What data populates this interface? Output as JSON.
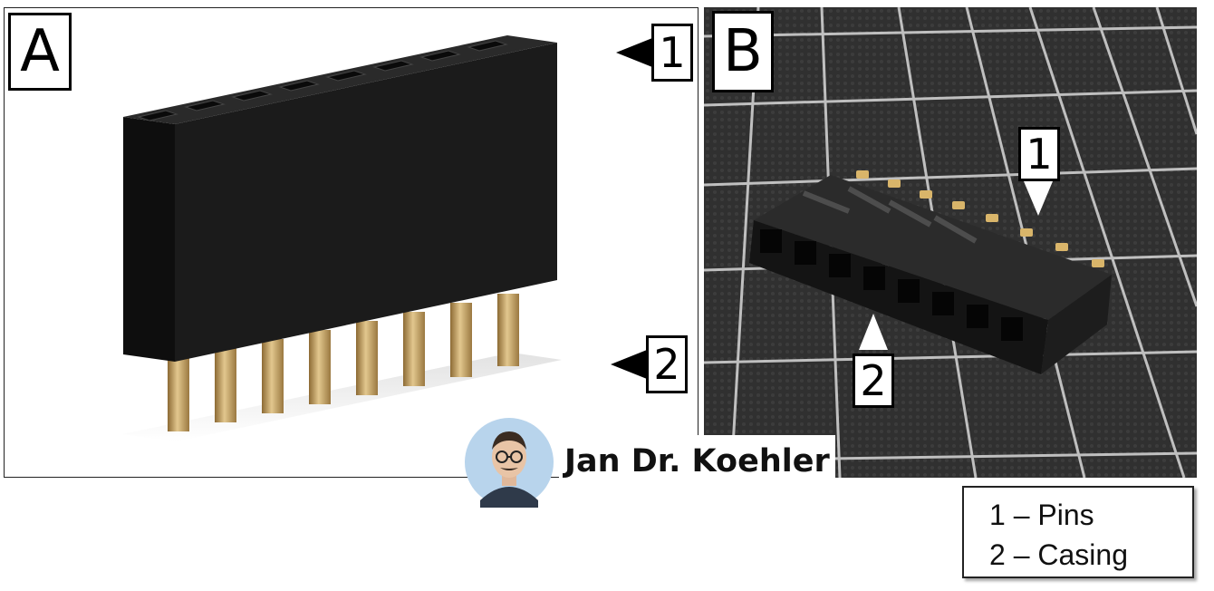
{
  "panels": {
    "a": {
      "label": "A",
      "callouts": [
        "1",
        "2"
      ]
    },
    "b": {
      "label": "B",
      "callouts": [
        "1",
        "2"
      ]
    }
  },
  "author": {
    "name": "Jan Dr. Koehler"
  },
  "legend": {
    "items": [
      {
        "text": "1 – Pins"
      },
      {
        "text": "2 – Casing"
      }
    ]
  },
  "colors": {
    "casing": "#1c1c1c",
    "pin_gold": "#c9a86a",
    "mat_dark": "#2e2e2e",
    "grid_line": "#d8d8d8"
  }
}
